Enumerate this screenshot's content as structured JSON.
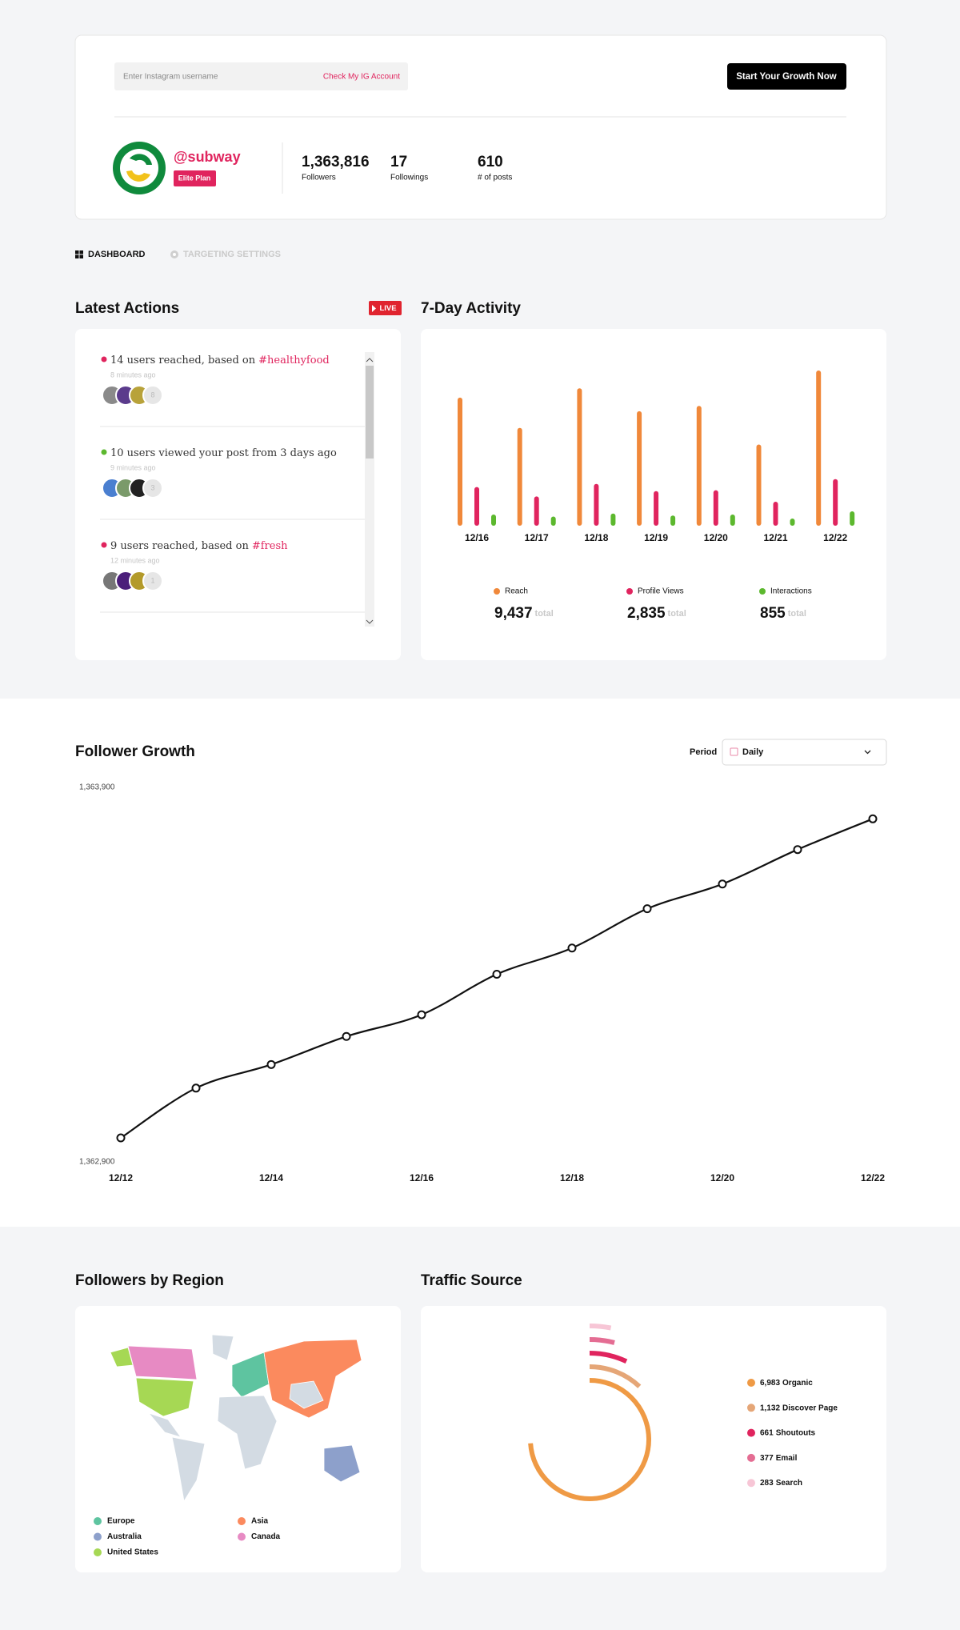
{
  "header": {
    "input_placeholder": "Enter Instagram username",
    "check_button": "Check My IG Account",
    "cta_button": "Start Your Growth Now"
  },
  "profile": {
    "handle": "@subway",
    "plan": "Elite Plan",
    "stats": [
      {
        "value": "1,363,816",
        "label": "Followers"
      },
      {
        "value": "17",
        "label": "Followings"
      },
      {
        "value": "610",
        "label": "# of posts"
      }
    ]
  },
  "tabs": [
    "DASHBOARD",
    "TARGETING SETTINGS"
  ],
  "latest_actions": {
    "title": "Latest Actions",
    "badge": "LIVE",
    "items": [
      {
        "text": "14 users reached, based on",
        "tag": "#healthyfood",
        "time": "8 minutes ago",
        "more": "8",
        "dot_color": "#e0245e"
      },
      {
        "text": "10 users viewed your post from 3 days ago",
        "time": "9 minutes ago",
        "more": "3",
        "dot_color": "#5cb82e"
      },
      {
        "text": "9 users reached, based on",
        "tag": "#fresh",
        "time": "12 minutes ago",
        "more": "1",
        "dot_color": "#e0245e"
      }
    ]
  },
  "period": {
    "label": "Period",
    "value": "Daily"
  },
  "region_map": {
    "title": "Followers by Region",
    "legend": [
      {
        "name": "Europe",
        "color": "#5ec4a0"
      },
      {
        "name": "Asia",
        "color": "#fb8a5e"
      },
      {
        "name": "Australia",
        "color": "#8da0cb"
      },
      {
        "name": "Canada",
        "color": "#e78ac3"
      },
      {
        "name": "United States",
        "color": "#a6d854"
      }
    ]
  },
  "chart_data": [
    {
      "type": "bar",
      "title": "7-Day Activity",
      "total_suffix": "total",
      "categories": [
        "12/16",
        "12/17",
        "12/18",
        "12/19",
        "12/20",
        "12/21",
        "12/22"
      ],
      "series": [
        {
          "name": "Reach",
          "color": "#f0883a",
          "values": [
            1449,
            1107,
            1555,
            1296,
            1355,
            919,
            1756
          ],
          "total": 9437,
          "total_label": "9,437"
        },
        {
          "name": "Profile Views",
          "color": "#e0245e",
          "values": [
            438,
            332,
            473,
            391,
            402,
            272,
            527
          ],
          "total": 2835,
          "total_label": "2,835"
        },
        {
          "name": "Interactions",
          "color": "#5cb82e",
          "values": [
            127,
            104,
            138,
            115,
            127,
            81,
            163
          ],
          "total": 855,
          "total_label": "855"
        }
      ]
    },
    {
      "type": "line",
      "title": "Follower Growth",
      "color": "#111111",
      "grid": false,
      "categories": [
        "12/12",
        null,
        "12/14",
        null,
        "12/16",
        null,
        "12/18",
        null,
        "12/20",
        null,
        "12/22"
      ],
      "values": [
        1362964,
        1363097,
        1363160,
        1363235,
        1363293,
        1363401,
        1363471,
        1363576,
        1363642,
        1363734,
        1363816
      ],
      "ylim": [
        1362900,
        1363900
      ],
      "yticks": [
        {
          "value": 1362900,
          "label": "1,362,900"
        },
        {
          "value": 1363900,
          "label": "1,363,900"
        }
      ]
    },
    {
      "type": "radial",
      "title": "Traffic Source",
      "categories": [
        "Organic",
        "Discover Page",
        "Shoutouts",
        "Email",
        "Search"
      ],
      "values": [
        6983,
        1132,
        661,
        377,
        283
      ],
      "value_labels": [
        "6,983",
        "1,132",
        "661",
        "377",
        "283"
      ],
      "colors": [
        "#ef9a45",
        "#e5a677",
        "#e0245e",
        "#e46d93",
        "#f7c6d6"
      ]
    }
  ]
}
